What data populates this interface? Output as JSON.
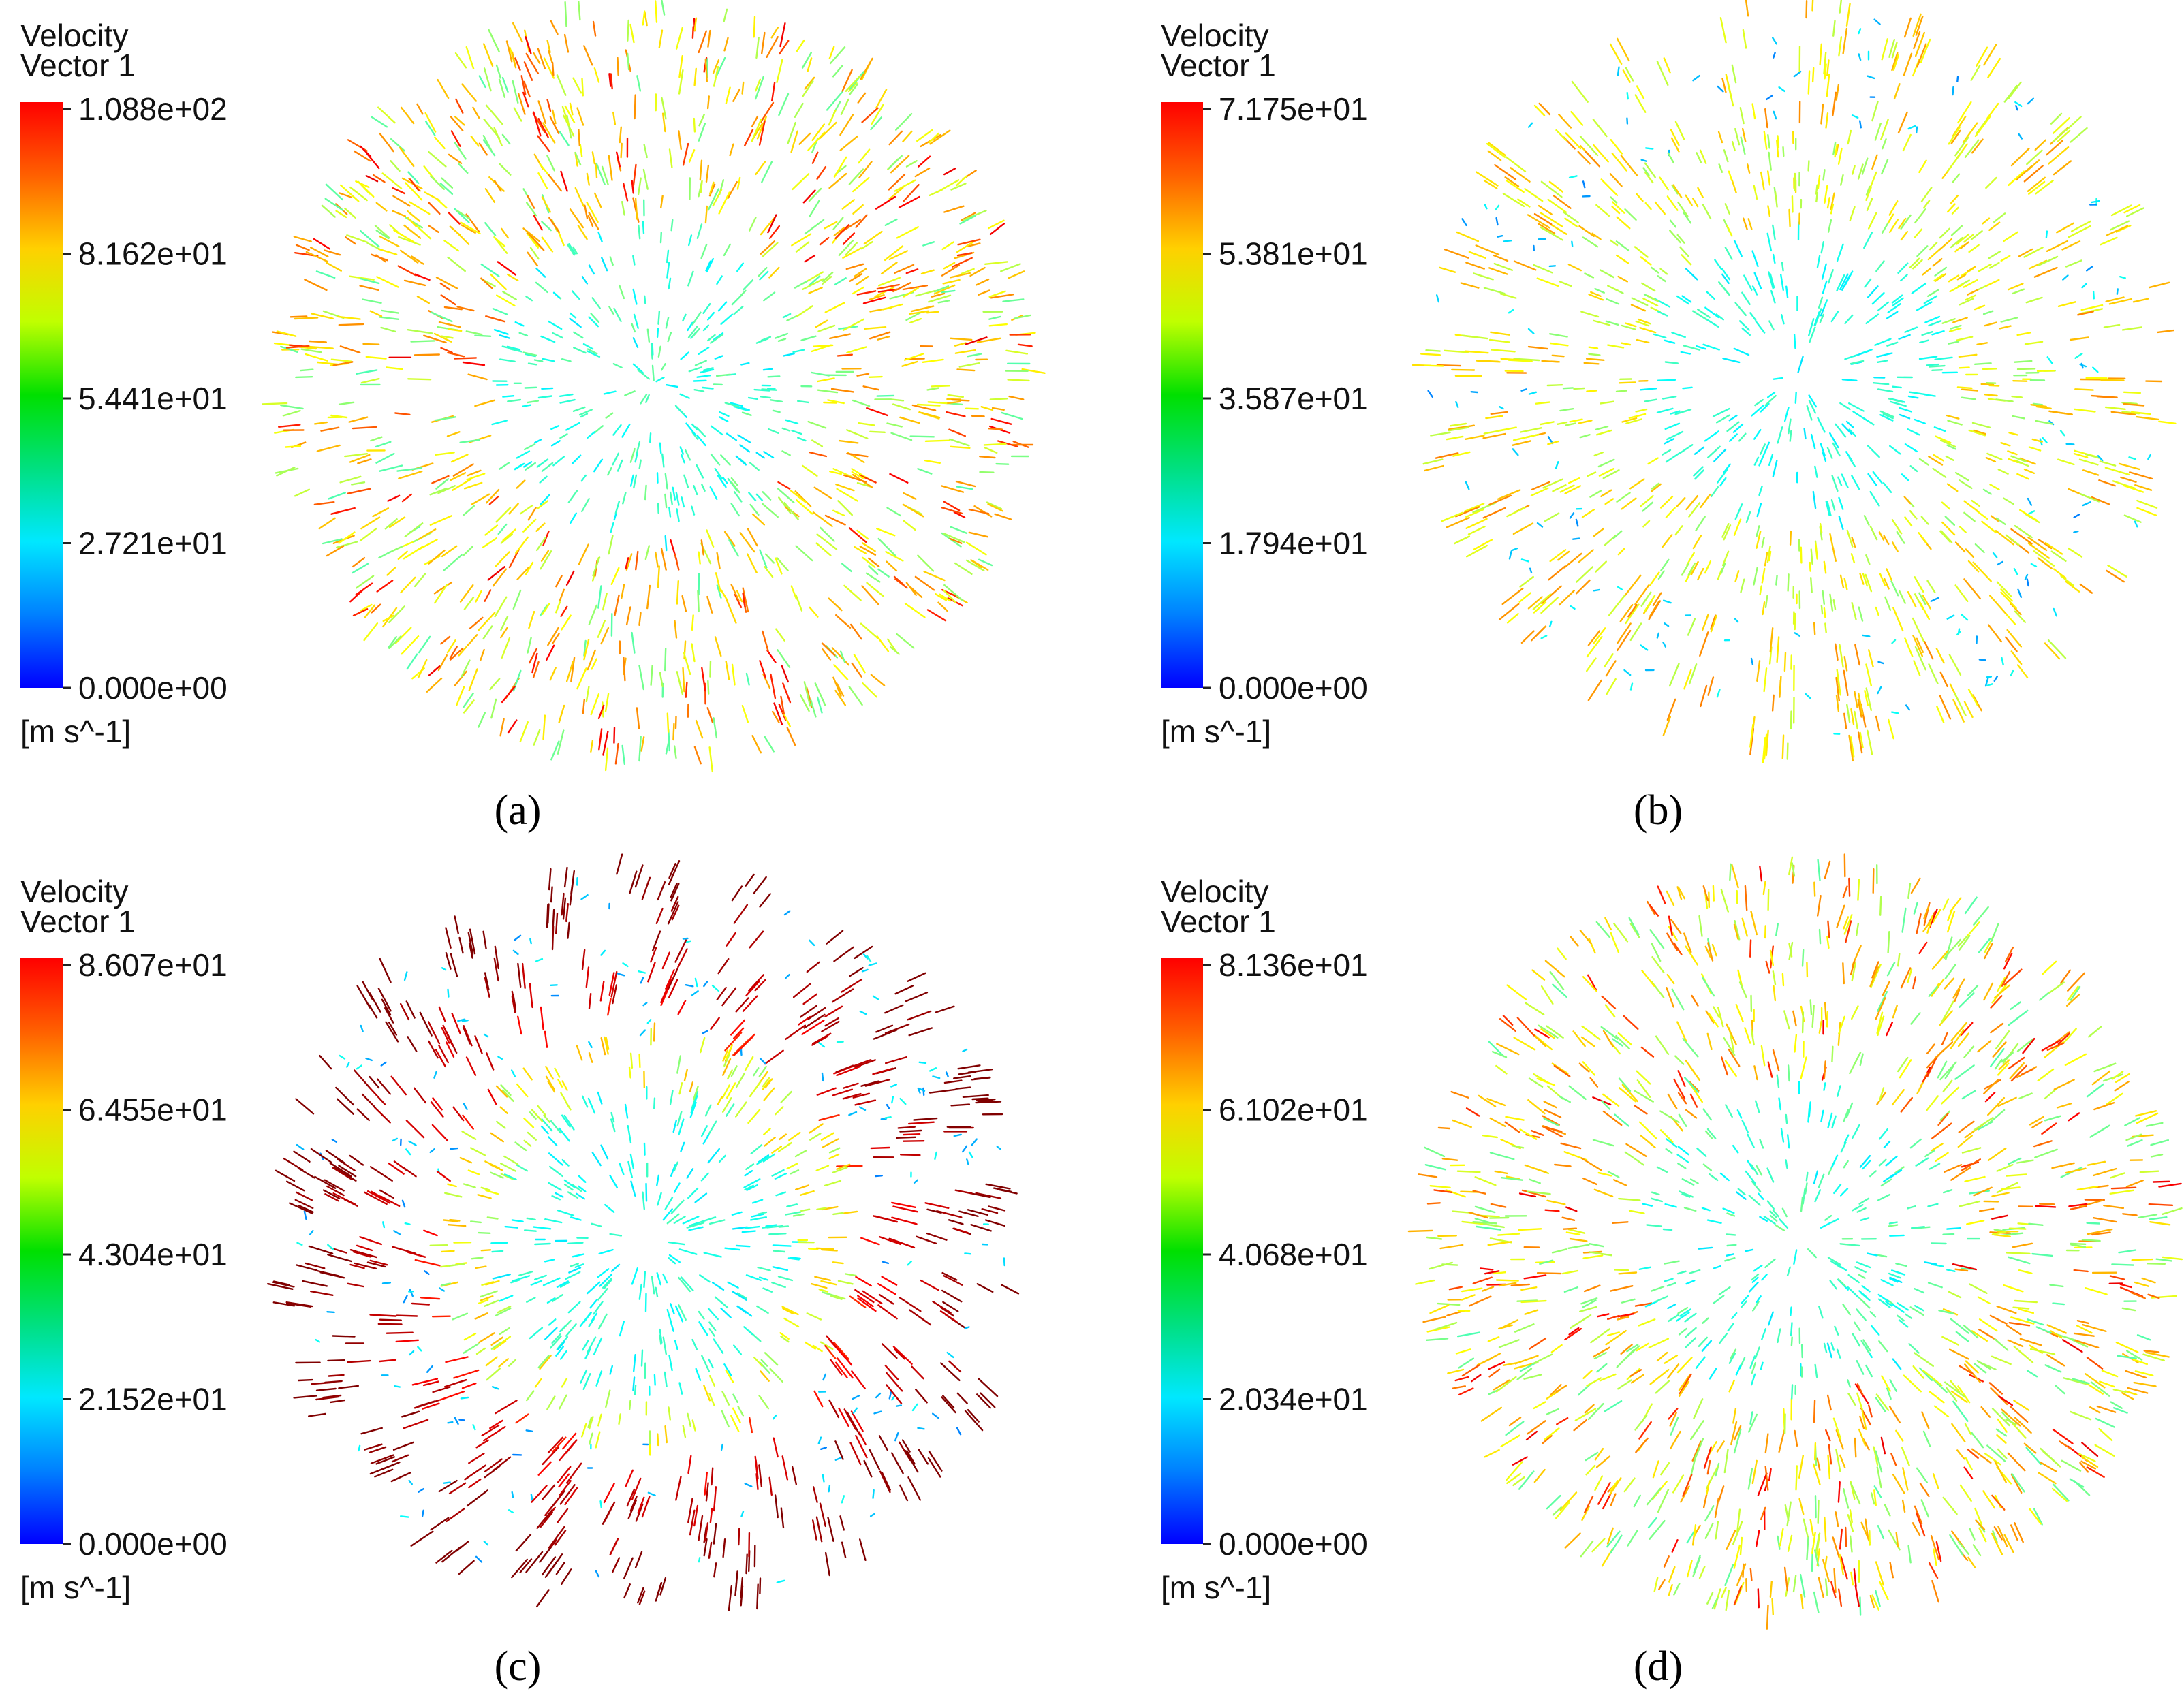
{
  "panels": [
    {
      "legend": {
        "title": [
          "Velocity",
          "Vector 1"
        ],
        "ticks": [
          "1.088e+02",
          "8.162e+01",
          "5.441e+01",
          "2.721e+01",
          "0.000e+00"
        ],
        "unit": "[m s^-1]"
      },
      "label": "(a)"
    },
    {
      "legend": {
        "title": [
          "Velocity",
          "Vector 1"
        ],
        "ticks": [
          "7.175e+01",
          "5.381e+01",
          "3.587e+01",
          "1.794e+01",
          "0.000e+00"
        ],
        "unit": "[m s^-1]"
      },
      "label": "(b)"
    },
    {
      "legend": {
        "title": [
          "Velocity",
          "Vector 1"
        ],
        "ticks": [
          "8.607e+01",
          "6.455e+01",
          "4.304e+01",
          "2.152e+01",
          "0.000e+00"
        ],
        "unit": "[m s^-1]"
      },
      "label": "(c)"
    },
    {
      "legend": {
        "title": [
          "Velocity",
          "Vector 1"
        ],
        "ticks": [
          "8.136e+01",
          "6.102e+01",
          "4.068e+01",
          "2.034e+01",
          "0.000e+00"
        ],
        "unit": "[m s^-1]"
      },
      "label": "(d)"
    }
  ]
}
